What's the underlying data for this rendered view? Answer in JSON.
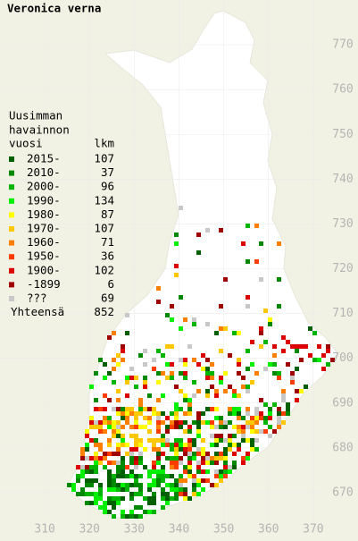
{
  "title": "Veronica verna",
  "legend": {
    "header": [
      "Uusimman",
      "havainnon",
      "vuosi"
    ],
    "count_header": "lkm",
    "rows": [
      {
        "label": "2015-",
        "count": 107,
        "color": "#006000"
      },
      {
        "label": "2010-",
        "count": 37,
        "color": "#008800"
      },
      {
        "label": "2000-",
        "count": 96,
        "color": "#00b400"
      },
      {
        "label": "1990-",
        "count": 134,
        "color": "#00f000"
      },
      {
        "label": "1980-",
        "count": 87,
        "color": "#ffff00"
      },
      {
        "label": "1970-",
        "count": 107,
        "color": "#ffc800"
      },
      {
        "label": "1960-",
        "count": 71,
        "color": "#ff8000"
      },
      {
        "label": "1950-",
        "count": 36,
        "color": "#ff3c00"
      },
      {
        "label": "1900-",
        "count": 102,
        "color": "#dc0000"
      },
      {
        "label": "-1899",
        "count": 6,
        "color": "#a00000"
      },
      {
        "label": "???",
        "count": 69,
        "color": "#c8c8c8"
      }
    ],
    "total_label": "Yhteensä",
    "total": 852
  },
  "grid": {
    "xlim": [
      300,
      380
    ],
    "ylim": [
      660,
      780
    ],
    "xticks": [
      310,
      320,
      330,
      340,
      350,
      360,
      370
    ],
    "yticks": [
      670,
      680,
      690,
      700,
      710,
      720,
      730,
      740,
      750,
      760,
      770
    ]
  }
}
